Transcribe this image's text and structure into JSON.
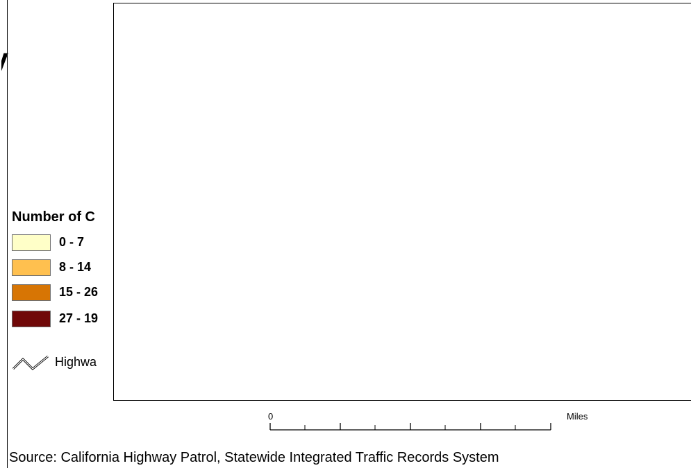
{
  "title": {
    "fragment": "y"
  },
  "legend": {
    "title": "Number of C",
    "items": [
      {
        "label": "0 - 7",
        "color": "#ffffc8"
      },
      {
        "label": "8 - 14",
        "color": "#ffc04f"
      },
      {
        "label": "15 - 26",
        "color": "#d77504"
      },
      {
        "label": "27 - 19",
        "color": "#700808"
      }
    ],
    "highway_label": "Highwa",
    "highway_icon": "highway-line-icon"
  },
  "scale": {
    "zero_label": "0",
    "unit_label": "Miles"
  },
  "source": "Source:  California Highway Patrol, Statewide Integrated Traffic Records System"
}
